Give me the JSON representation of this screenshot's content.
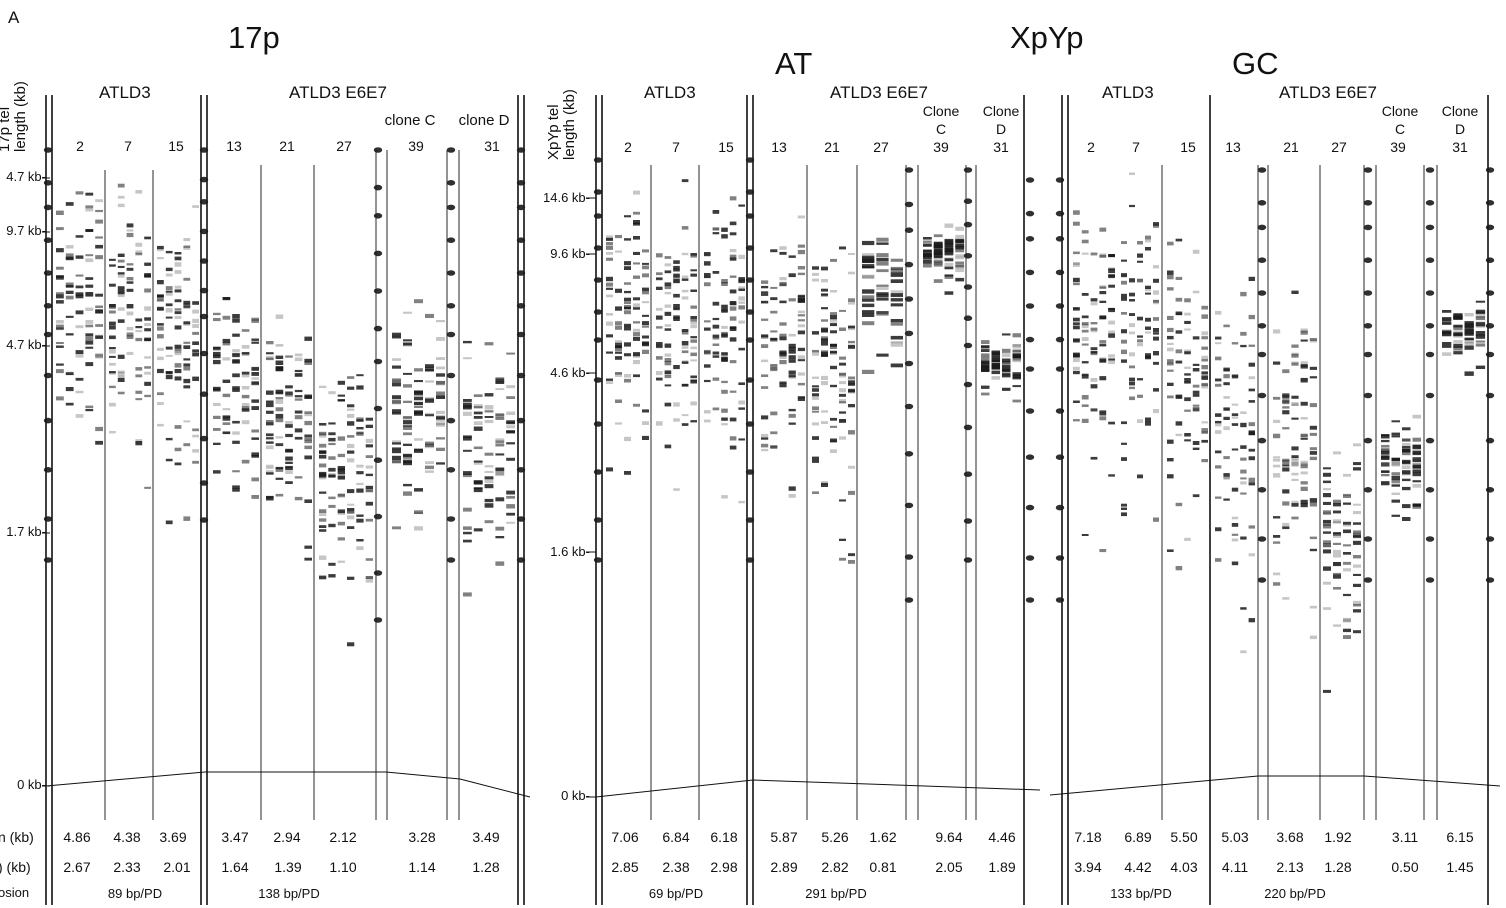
{
  "panel_letter": "A",
  "titles": {
    "p17": "17p",
    "xpyp": "XpYp",
    "at": "AT",
    "gc": "GC"
  },
  "y_labels": {
    "p17": [
      "17p tel",
      "length (kb)"
    ],
    "xpyp": [
      "XpYp tel",
      "length (kb)"
    ]
  },
  "row_labels": [
    "n (kb)",
    ") (kb)",
    "osion"
  ],
  "ticks": {
    "p17": [
      "4.7 kb-",
      "9.7 kb-",
      "4.7 kb-",
      "1.7 kb-",
      "0 kb-"
    ],
    "xpyp": [
      "14.6 kb-",
      "9.6 kb-",
      "4.6 kb-",
      "1.6 kb-",
      "0 kb-"
    ]
  },
  "blots": [
    {
      "name": "17p",
      "groups": [
        {
          "label": "ATLD3",
          "pd": [
            "2",
            "7",
            "15"
          ],
          "mean": [
            "4.86",
            "4.38",
            "3.69"
          ],
          "sd": [
            "2.67",
            "2.33",
            "2.01"
          ],
          "erosion": "89 bp/PD"
        },
        {
          "label": "ATLD3 E6E7",
          "pd": [
            "13",
            "21",
            "27"
          ],
          "mean": [
            "3.47",
            "2.94",
            "2.12"
          ],
          "sd": [
            "1.64",
            "1.39",
            "1.10"
          ],
          "erosion": "138 bp/PD"
        },
        {
          "label": "clone C",
          "pd": [
            "39"
          ],
          "mean": [
            "3.28"
          ],
          "sd": [
            "1.14"
          ]
        },
        {
          "label": "clone D",
          "pd": [
            "31"
          ],
          "mean": [
            "3.49"
          ],
          "sd": [
            "1.28"
          ]
        }
      ]
    },
    {
      "name": "XpYp AT",
      "groups": [
        {
          "label": "ATLD3",
          "pd": [
            "2",
            "7",
            "15"
          ],
          "mean": [
            "7.06",
            "6.84",
            "6.18"
          ],
          "sd": [
            "2.85",
            "2.38",
            "2.98"
          ],
          "erosion": "69 bp/PD"
        },
        {
          "label": "ATLD3 E6E7",
          "pd": [
            "13",
            "21",
            "27"
          ],
          "mean": [
            "5.87",
            "5.26",
            "1.62"
          ],
          "sd": [
            "2.89",
            "2.82",
            "0.81"
          ],
          "erosion": "291 bp/PD"
        },
        {
          "label": [
            "Clone",
            "C"
          ],
          "pd": [
            "39"
          ],
          "mean": [
            "9.64"
          ],
          "sd": [
            "2.05"
          ]
        },
        {
          "label": [
            "Clone",
            "D"
          ],
          "pd": [
            "31"
          ],
          "mean": [
            "4.46"
          ],
          "sd": [
            "1.89"
          ]
        }
      ]
    },
    {
      "name": "XpYp GC",
      "groups": [
        {
          "label": "ATLD3",
          "pd": [
            "2",
            "7",
            "15"
          ],
          "mean": [
            "7.18",
            "6.89",
            "5.50"
          ],
          "sd": [
            "3.94",
            "4.42",
            "4.03"
          ],
          "erosion": "133 bp/PD"
        },
        {
          "label": "ATLD3 E6E7",
          "pd": [
            "13",
            "21",
            "27"
          ],
          "mean": [
            "5.03",
            "3.68",
            "1.92"
          ],
          "sd": [
            "4.11",
            "2.13",
            "1.28"
          ],
          "erosion": "220 bp/PD"
        },
        {
          "label": [
            "Clone",
            "C"
          ],
          "pd": [
            "39"
          ],
          "mean": [
            "3.11"
          ],
          "sd": [
            "0.50"
          ]
        },
        {
          "label": [
            "Clone",
            "D"
          ],
          "pd": [
            "31"
          ],
          "mean": [
            "6.15"
          ],
          "sd": [
            "1.45"
          ]
        }
      ]
    }
  ],
  "colors": {
    "ink": "#111111",
    "band": "#1a1a1a",
    "background": "#ffffff"
  }
}
